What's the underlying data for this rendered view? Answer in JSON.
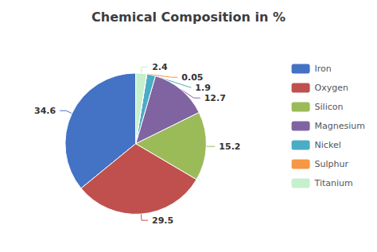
{
  "chart_data": {
    "type": "pie",
    "title": "Chemical Composition in %",
    "categories": [
      "Iron",
      "Oxygen",
      "Silicon",
      "Magnesium",
      "Nickel",
      "Sulphur",
      "Titanium"
    ],
    "values": [
      34.6,
      29.5,
      15.2,
      12.7,
      1.9,
      0.05,
      2.4
    ],
    "colors": [
      "#4472C4",
      "#C0504D",
      "#9BBB59",
      "#8064A2",
      "#4BACC6",
      "#F79646",
      "#C6EFCE"
    ],
    "data_labels": true,
    "legend": "right"
  }
}
